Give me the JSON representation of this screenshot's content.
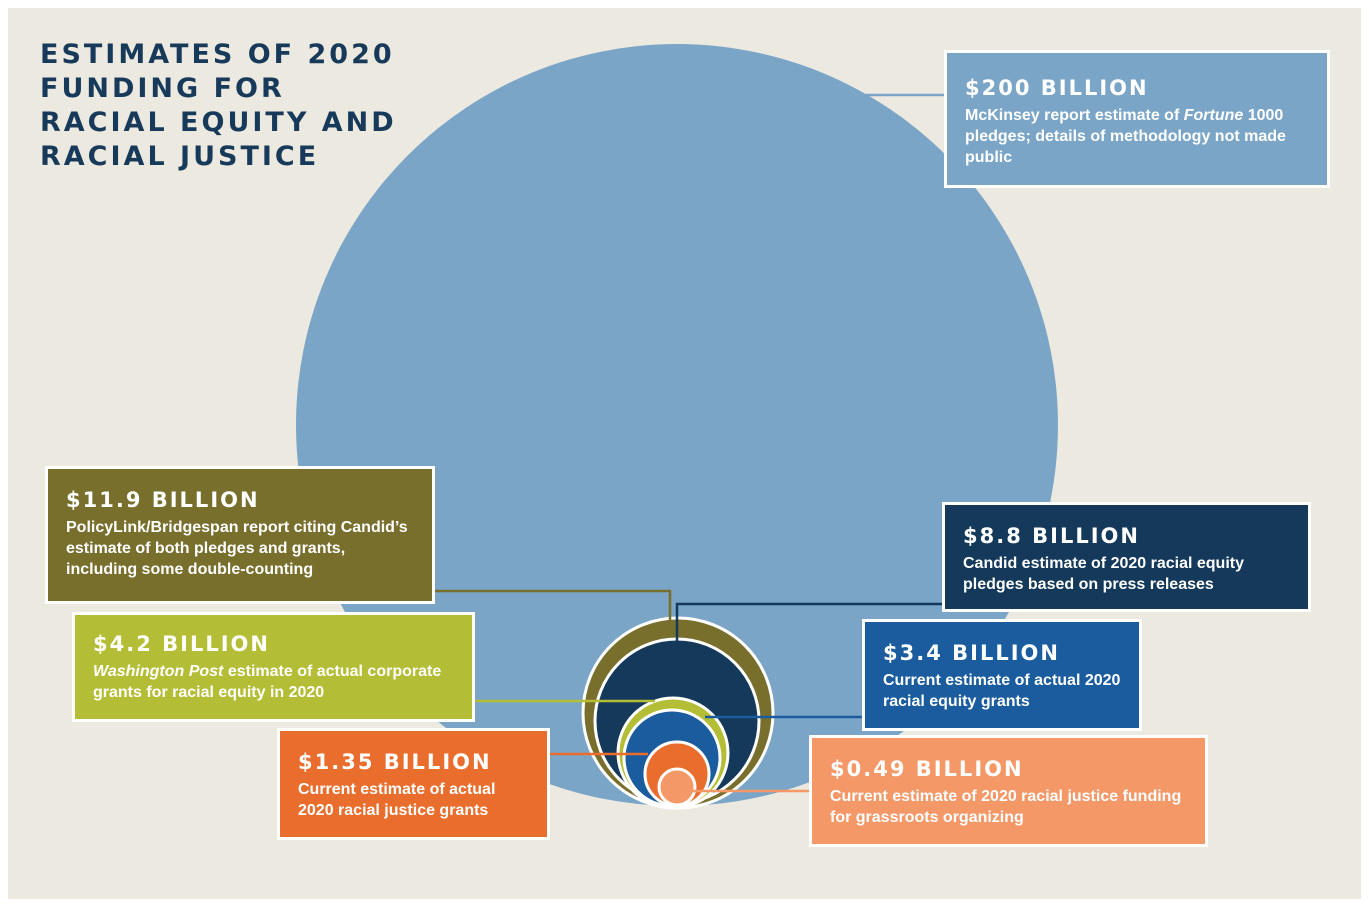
{
  "title": "ESTIMATES OF 2020 FUNDING FOR RACIAL EQUITY AND RACIAL JUSTICE",
  "chart_data": {
    "type": "bubble",
    "unit": "billion USD",
    "series": [
      {
        "label": "$200 BILLION",
        "value": 200,
        "color": "#7aa5c7",
        "description_parts": [
          "McKinsey report estimate of ",
          "Fortune",
          " 1000 pledges; details of methodology not made public"
        ]
      },
      {
        "label": "$11.9 BILLION",
        "value": 11.9,
        "color": "#786f2d",
        "description_parts": [
          "PolicyLink/Bridgespan report citing Candid’s estimate of both pledges and grants, including some double-counting"
        ]
      },
      {
        "label": "$8.8 BILLION",
        "value": 8.8,
        "color": "#14395a",
        "description_parts": [
          "Candid estimate of 2020 racial equity pledges based on press releases"
        ]
      },
      {
        "label": "$4.2 BILLION",
        "value": 4.2,
        "color": "#b3bd35",
        "description_parts": [
          "Washington Post",
          " estimate of actual corporate grants for racial equity in 2020"
        ]
      },
      {
        "label": "$3.4 BILLION",
        "value": 3.4,
        "color": "#1a5c9e",
        "description_parts": [
          "Current estimate of actual 2020 racial equity grants"
        ]
      },
      {
        "label": "$1.35 BILLION",
        "value": 1.35,
        "color": "#e96e2d",
        "description_parts": [
          "Current estimate of actual 2020 racial justice grants"
        ]
      },
      {
        "label": "$0.49 BILLION",
        "value": 0.49,
        "color": "#f59868",
        "description_parts": [
          "Current estimate of 2020 racial justice funding for grassroots organizing"
        ]
      }
    ]
  }
}
